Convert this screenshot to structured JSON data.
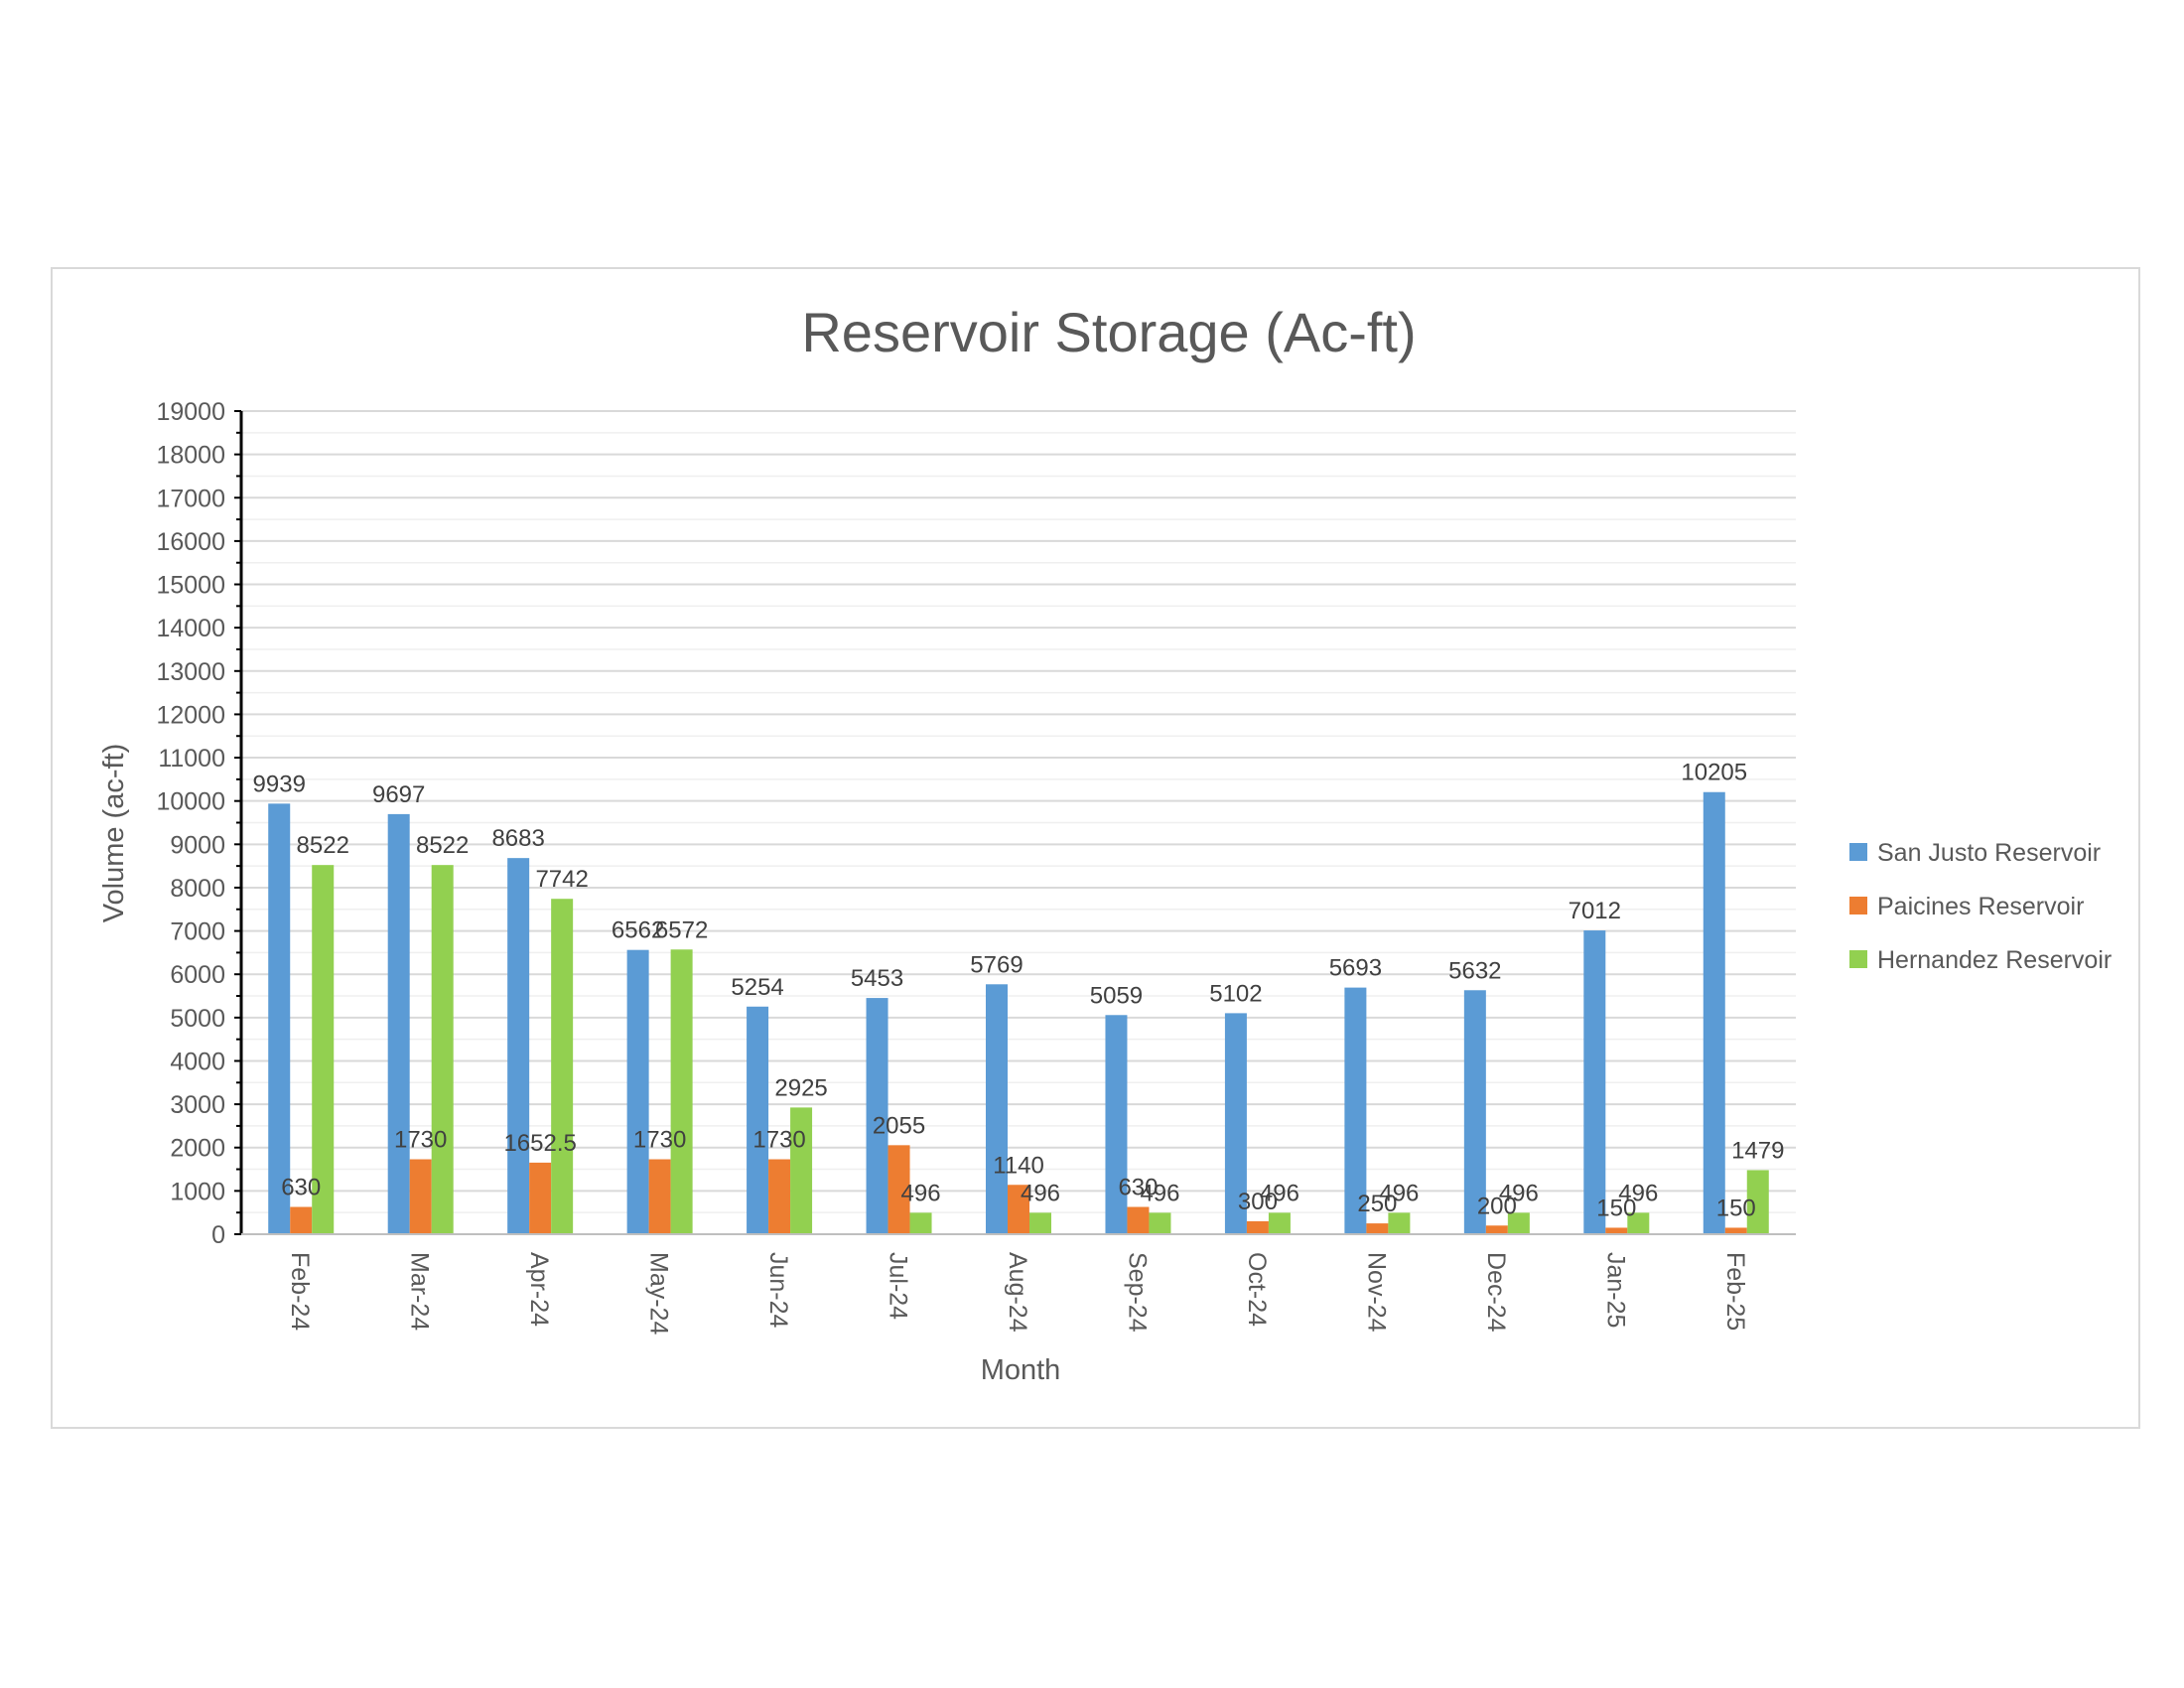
{
  "chart_data": {
    "type": "bar",
    "title": "Reservoir Storage (Ac-ft)",
    "xlabel": "Month",
    "ylabel": "Volume (ac-ft)",
    "ylim": [
      0,
      19000
    ],
    "ytick_step": 1000,
    "grid": true,
    "legend_position": "right",
    "categories": [
      "Feb-24",
      "Mar-24",
      "Apr-24",
      "May-24",
      "Jun-24",
      "Jul-24",
      "Aug-24",
      "Sep-24",
      "Oct-24",
      "Nov-24",
      "Dec-24",
      "Jan-25",
      "Feb-25"
    ],
    "series": [
      {
        "name": "San Justo Reservoir",
        "color": "#5b9bd5",
        "values": [
          9939,
          9697,
          8683,
          6562,
          5254,
          5453,
          5769,
          5059,
          5102,
          5693,
          5632,
          7012,
          10205
        ],
        "labels": [
          "9939",
          "9697",
          "8683",
          "6562",
          "5254",
          "5453",
          "5769",
          "5059",
          "5102",
          "5693",
          "5632",
          "7012",
          "10205"
        ]
      },
      {
        "name": "Paicines Reservoir",
        "color": "#ed7d31",
        "values": [
          630,
          1730,
          1652.5,
          1730,
          1730,
          2055,
          1140,
          630,
          300,
          250,
          200,
          150,
          150
        ],
        "labels": [
          "630",
          "1730",
          "1652.5",
          "1730",
          "1730",
          "2055",
          "1140",
          "630",
          "300",
          "250",
          "200",
          "150",
          "150"
        ]
      },
      {
        "name": "Hernandez Reservoir",
        "color": "#92d050",
        "values": [
          8522,
          8522,
          7742,
          6572,
          2925,
          496,
          496,
          496,
          496,
          496,
          496,
          496,
          1479
        ],
        "labels": [
          "8522",
          "8522",
          "7742",
          "6572",
          "2925",
          "496",
          "496",
          "496",
          "496",
          "496",
          "496",
          "496",
          "1479"
        ]
      }
    ]
  }
}
